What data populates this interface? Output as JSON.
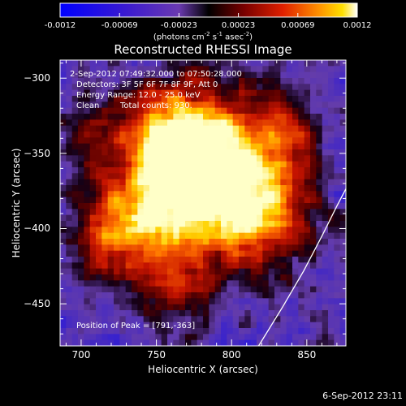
{
  "colorbar": {
    "ticks": [
      "-0.0012",
      "-0.00069",
      "-0.00023",
      "0.00023",
      "0.00069",
      "0.0012"
    ],
    "units": {
      "prefix": "(photons cm",
      "exp1": "-2",
      "s": " s",
      "exp2": "-1",
      "asec": " asec",
      "exp3": "-2",
      "suffix": ")"
    }
  },
  "chart_data": {
    "type": "heatmap",
    "title": "Reconstructed RHESSI Image",
    "xlabel": "Heliocentric X (arcsec)",
    "ylabel": "Heliocentric Y (arcsec)",
    "xlim": [
      686,
      876
    ],
    "ylim": [
      -478,
      -288
    ],
    "xticks": [
      "700",
      "750",
      "800",
      "850"
    ],
    "yticks": [
      "-300",
      "-350",
      "-400",
      "-450"
    ],
    "zlim": [
      -0.0012,
      0.0012
    ],
    "peak": [
      791,
      -363
    ],
    "grid": false
  },
  "annotations": {
    "time_range": "2-Sep-2012 07:49:32.000 to 07:50:28.000",
    "detectors": "Detectors: 3F 5F 6F 7F 8F 9F, Att 0",
    "energy": "Energy Range: 12.0 - 25.0 keV",
    "method": "Clean",
    "counts": "Total counts: 930.",
    "peak_text": "Position of Peak = [791,-363]"
  },
  "footer": {
    "timestamp": "6-Sep-2012 23:11"
  }
}
